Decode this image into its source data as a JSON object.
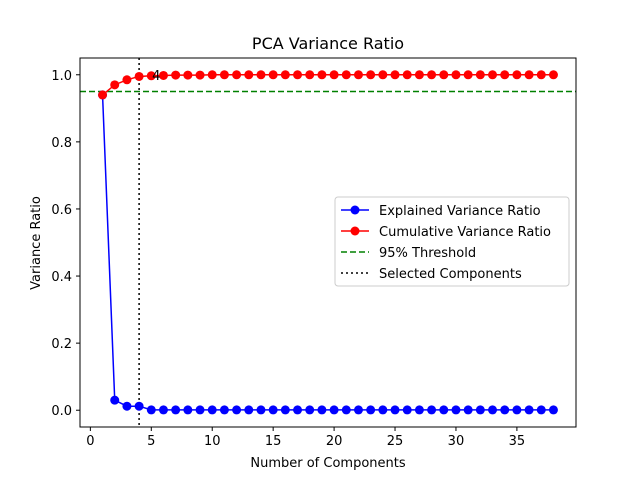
{
  "chart_data": {
    "type": "line",
    "title": "PCA Variance Ratio",
    "xlabel": "Number of Components",
    "ylabel": "Variance Ratio",
    "xlim": [
      -0.85,
      39.85
    ],
    "ylim": [
      -0.05,
      1.05
    ],
    "x_ticks": [
      0,
      5,
      10,
      15,
      20,
      25,
      30,
      35
    ],
    "x_tick_labels": [
      "0",
      "5",
      "10",
      "15",
      "20",
      "25",
      "30",
      "35"
    ],
    "y_ticks": [
      0.0,
      0.2,
      0.4,
      0.6,
      0.8,
      1.0
    ],
    "y_tick_labels": [
      "0.0",
      "0.2",
      "0.4",
      "0.6",
      "0.8",
      "1.0"
    ],
    "grid": false,
    "legend_position": "center-right",
    "x": [
      1,
      2,
      3,
      4,
      5,
      6,
      7,
      8,
      9,
      10,
      11,
      12,
      13,
      14,
      15,
      16,
      17,
      18,
      19,
      20,
      21,
      22,
      23,
      24,
      25,
      26,
      27,
      28,
      29,
      30,
      31,
      32,
      33,
      34,
      35,
      36,
      37,
      38
    ],
    "series": [
      {
        "name": "Explained Variance Ratio",
        "color": "#0000ff",
        "marker": "circle",
        "style": "solid",
        "values": [
          0.94,
          0.03,
          0.012,
          0.012,
          0.001,
          0.001,
          0.001,
          0.001,
          0.001,
          0.001,
          0.001,
          0.001,
          0.001,
          0.001,
          0.001,
          0.001,
          0.001,
          0.001,
          0.001,
          0.001,
          0.001,
          0.001,
          0.001,
          0.001,
          0.001,
          0.001,
          0.001,
          0.001,
          0.001,
          0.001,
          0.001,
          0.001,
          0.001,
          0.001,
          0.001,
          0.001,
          0.001,
          0.001
        ]
      },
      {
        "name": "Cumulative Variance Ratio",
        "color": "#ff0000",
        "marker": "circle",
        "style": "solid",
        "values": [
          0.94,
          0.97,
          0.985,
          0.995,
          0.997,
          0.998,
          0.999,
          0.999,
          0.999,
          1.0,
          1.0,
          1.0,
          1.0,
          1.0,
          1.0,
          1.0,
          1.0,
          1.0,
          1.0,
          1.0,
          1.0,
          1.0,
          1.0,
          1.0,
          1.0,
          1.0,
          1.0,
          1.0,
          1.0,
          1.0,
          1.0,
          1.0,
          1.0,
          1.0,
          1.0,
          1.0,
          1.0,
          1.0
        ]
      }
    ],
    "hline": {
      "name": "95% Threshold",
      "y": 0.95,
      "color": "#008000",
      "style": "dashed"
    },
    "vline": {
      "name": "Selected Components",
      "x": 4,
      "color": "#000000",
      "style": "dotted"
    },
    "annotation": {
      "text": "4",
      "x": 4,
      "y": 1.0
    }
  }
}
